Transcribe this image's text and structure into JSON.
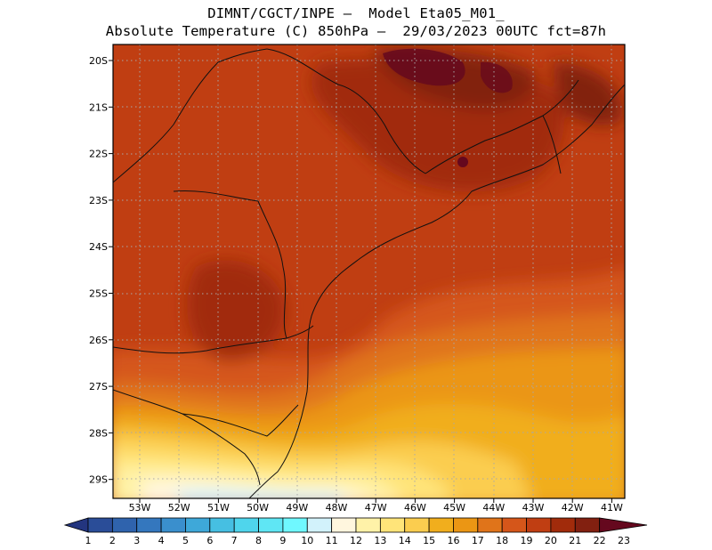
{
  "title": {
    "line1": "DIMNT/CGCT/INPE –  Model Eta05_M01_",
    "line2": "Absolute Temperature (C) 850hPa –  29/03/2023 00UTC fct=87h"
  },
  "map": {
    "lat_labels": [
      "20S",
      "21S",
      "22S",
      "23S",
      "24S",
      "25S",
      "26S",
      "27S",
      "28S",
      "29S"
    ],
    "lon_labels": [
      "53W",
      "52W",
      "51W",
      "50W",
      "49W",
      "48W",
      "47W",
      "46W",
      "45W",
      "44W",
      "43W",
      "42W",
      "41W"
    ],
    "lat_range": [
      -29.4,
      -19.7
    ],
    "lon_range": [
      -53.7,
      -40.6
    ],
    "grid": "dotted"
  },
  "colorbar": {
    "labels": [
      "1",
      "2",
      "3",
      "4",
      "5",
      "6",
      "7",
      "8",
      "9",
      "10",
      "11",
      "12",
      "13",
      "14",
      "15",
      "16",
      "17",
      "18",
      "19",
      "20",
      "21",
      "22",
      "23"
    ],
    "colors": [
      "#23357f",
      "#2a4d98",
      "#2f63ad",
      "#3477be",
      "#3a8fcd",
      "#3ea8d9",
      "#46bfe2",
      "#4fd5ec",
      "#5fe6f4",
      "#6ff8ff",
      "#d2f2fb",
      "#fff6de",
      "#fff2a8",
      "#ffe479",
      "#fbcd4f",
      "#f1ae1d",
      "#eb9614",
      "#e0741a",
      "#d5561a",
      "#c03e12",
      "#a12b0b",
      "#822010",
      "#65081e"
    ]
  }
}
